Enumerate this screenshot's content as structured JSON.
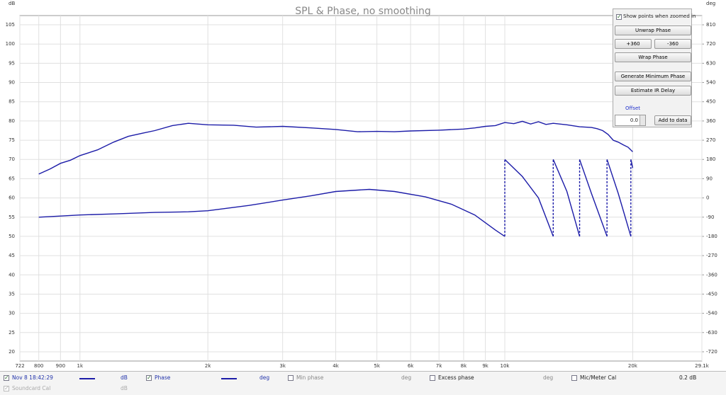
{
  "chart_data": {
    "type": "line",
    "title": "SPL & Phase, no smoothing",
    "y_label": "dB",
    "y2_label": "deg",
    "log_x": true,
    "grid": true,
    "xlim": [
      722,
      29100
    ],
    "xticks": [
      722,
      800,
      900,
      {
        "value": 1000,
        "label": "1k"
      },
      {
        "value": 2000,
        "label": "2k"
      },
      {
        "value": 3000,
        "label": "3k"
      },
      {
        "value": 4000,
        "label": "4k"
      },
      {
        "value": 5000,
        "label": "5k"
      },
      {
        "value": 6000,
        "label": "6k"
      },
      {
        "value": 7000,
        "label": "7k"
      },
      {
        "value": 8000,
        "label": "8k"
      },
      {
        "value": 9000,
        "label": "9k"
      },
      {
        "value": 10000,
        "label": "10k"
      },
      {
        "value": 20000,
        "label": "20k"
      },
      {
        "value": 29100,
        "label": "29.1k"
      }
    ],
    "ylim": [
      17.6,
      107.4
    ],
    "yticks": [
      20,
      25,
      30,
      35,
      40,
      45,
      50,
      55,
      60,
      65,
      70,
      75,
      80,
      85,
      90,
      95,
      100,
      105
    ],
    "y2lim": [
      -763.2,
      853.2
    ],
    "y2ticks": [
      -720,
      -630,
      -540,
      -450,
      -360,
      -270,
      -180,
      -90,
      0,
      90,
      180,
      270,
      360,
      450,
      540,
      630,
      720,
      810
    ],
    "series": [
      {
        "name": "Nov 8 18:42:29",
        "unit": "dB",
        "color": "#1c1ca8",
        "x": [
          800,
          850,
          900,
          950,
          1000,
          1100,
          1200,
          1300,
          1400,
          1500,
          1650,
          1800,
          2000,
          2300,
          2600,
          3000,
          3500,
          4000,
          4500,
          5000,
          5500,
          6000,
          7000,
          8000,
          8500,
          9000,
          9500,
          10000,
          10500,
          11000,
          11500,
          12000,
          12500,
          13000,
          14000,
          15000,
          16000,
          16500,
          17000,
          17500,
          18000,
          18500,
          19000,
          19500,
          20000
        ],
        "values": [
          66.2,
          67.5,
          69,
          69.8,
          71,
          72.5,
          74.5,
          76,
          76.8,
          77.5,
          78.8,
          79.4,
          79,
          78.9,
          78.4,
          78.6,
          78.2,
          77.8,
          77.2,
          77.3,
          77.2,
          77.4,
          77.6,
          77.9,
          78.2,
          78.6,
          78.8,
          79.6,
          79.3,
          79.9,
          79.2,
          79.8,
          79.1,
          79.4,
          79,
          78.5,
          78.3,
          78,
          77.5,
          76.5,
          75,
          74.5,
          73.8,
          73.2,
          72
        ]
      },
      {
        "name": "Phase",
        "unit": "deg",
        "color": "#1c1ca8",
        "axis": "y2",
        "x": [
          800,
          900,
          1000,
          1200,
          1500,
          1800,
          2000,
          2500,
          3000,
          3500,
          4000,
          4800,
          5500,
          6500,
          7500,
          8500,
          9500,
          10000,
          10000,
          11000,
          12000,
          13000,
          13000,
          14000,
          15000,
          15000,
          16000,
          17400,
          17400,
          18500,
          19800,
          19800,
          20000
        ],
        "values": [
          -90,
          -85,
          -80,
          -75,
          -68,
          -65,
          -60,
          -35,
          -10,
          10,
          30,
          40,
          30,
          5,
          -30,
          -80,
          -150,
          -180,
          180,
          100,
          0,
          -180,
          180,
          30,
          -180,
          180,
          20,
          -180,
          180,
          20,
          -180,
          180,
          140
        ]
      }
    ]
  },
  "controls": {
    "show_points": "Show points when zoomed in",
    "unwrap": "Unwrap Phase",
    "plus": "+360",
    "minus": "-360",
    "wrap": "Wrap Phase",
    "min_phase": "Generate Minimum Phase",
    "ir_delay": "Estimate IR Delay",
    "offset_label": "Offset",
    "offset_value": "0.0",
    "add": "Add to data"
  },
  "legend_bar": {
    "traces": [
      {
        "label": "Min phase",
        "unit": "deg"
      },
      {
        "label": "Excess phase",
        "unit": "deg"
      }
    ],
    "mic_cal": {
      "label": "Mic/Meter Cal",
      "value": "0.2 dB"
    },
    "soundcard_cal": {
      "label": "Soundcard Cal",
      "unit": "dB"
    }
  }
}
